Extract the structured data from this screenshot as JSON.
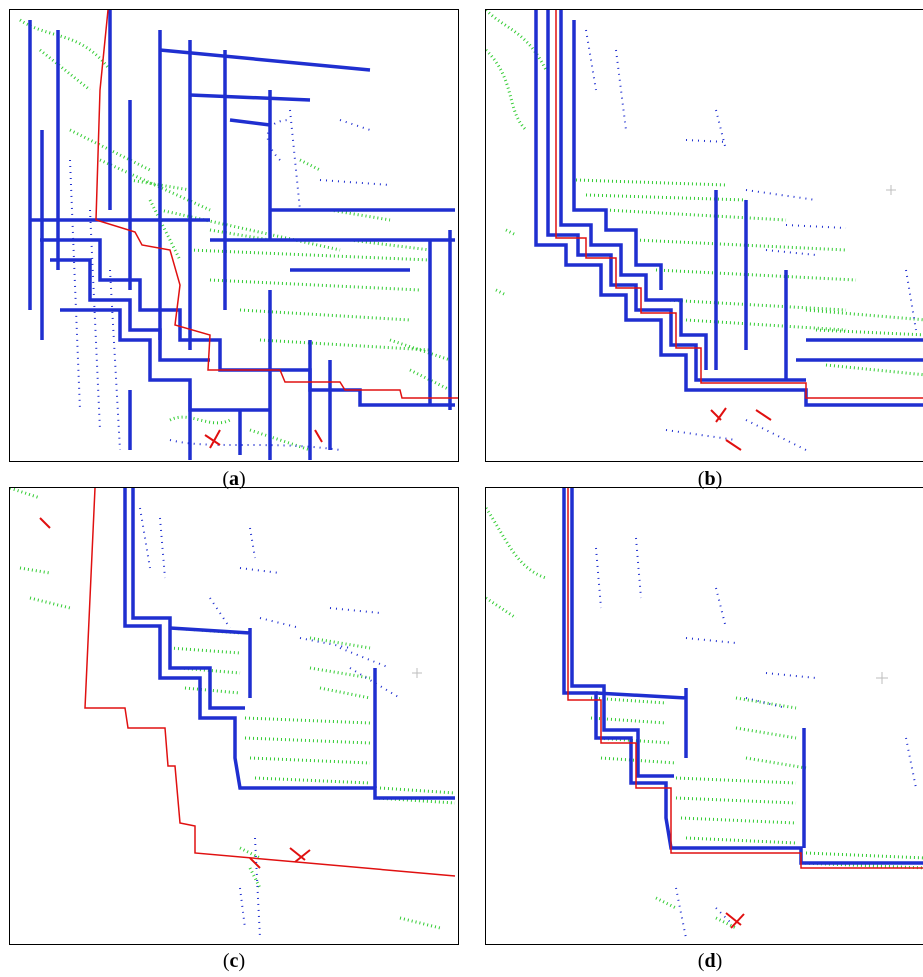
{
  "panels": [
    {
      "id": "a",
      "caption_open": "(",
      "caption_letter": "a",
      "caption_close": ")"
    },
    {
      "id": "b",
      "caption_open": "(",
      "caption_letter": "b",
      "caption_close": ")"
    },
    {
      "id": "c",
      "caption_open": "(",
      "caption_letter": "c",
      "caption_close": ")"
    },
    {
      "id": "d",
      "caption_open": "(",
      "caption_letter": "d",
      "caption_close": ")"
    }
  ],
  "colors": {
    "scan_blue": "#1f2fd0",
    "scan_green": "#33cc33",
    "scan_red": "#e01010",
    "reference_line": "#e01010",
    "frame": "#000000",
    "crosshair": "#bdbdbd"
  }
}
